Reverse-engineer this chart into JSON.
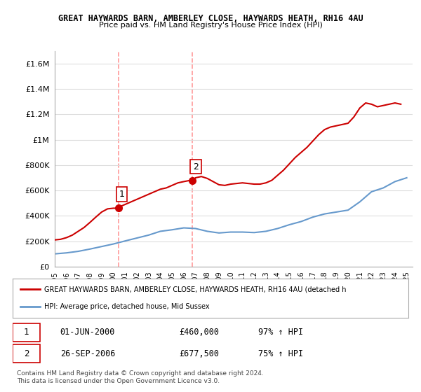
{
  "title1": "GREAT HAYWARDS BARN, AMBERLEY CLOSE, HAYWARDS HEATH, RH16 4AU",
  "title2": "Price paid vs. HM Land Registry's House Price Index (HPI)",
  "sale1_date": "01-JUN-2000",
  "sale1_price": 460000,
  "sale1_label": "1",
  "sale1_year": 2000.42,
  "sale2_date": "26-SEP-2006",
  "sale2_price": 677500,
  "sale2_label": "2",
  "sale2_year": 2006.73,
  "legend_red": "GREAT HAYWARDS BARN, AMBERLEY CLOSE, HAYWARDS HEATH, RH16 4AU (detached h",
  "legend_blue": "HPI: Average price, detached house, Mid Sussex",
  "table_row1": [
    "1",
    "01-JUN-2000",
    "£460,000",
    "97% ↑ HPI"
  ],
  "table_row2": [
    "2",
    "26-SEP-2006",
    "£677,500",
    "75% ↑ HPI"
  ],
  "footnote1": "Contains HM Land Registry data © Crown copyright and database right 2024.",
  "footnote2": "This data is licensed under the Open Government Licence v3.0.",
  "red_color": "#cc0000",
  "blue_color": "#6699cc",
  "vline_color": "#ff9999",
  "ylim": [
    0,
    1700000
  ],
  "xlim_left": 1995.0,
  "xlim_right": 2025.5,
  "hpi_years": [
    1995,
    1996,
    1997,
    1998,
    1999,
    2000,
    2001,
    2002,
    2003,
    2004,
    2005,
    2006,
    2007,
    2008,
    2009,
    2010,
    2011,
    2012,
    2013,
    2014,
    2015,
    2016,
    2017,
    2018,
    2019,
    2020,
    2021,
    2022,
    2023,
    2024,
    2025
  ],
  "hpi_values": [
    100000,
    108000,
    120000,
    138000,
    158000,
    178000,
    202000,
    225000,
    248000,
    278000,
    290000,
    305000,
    300000,
    278000,
    265000,
    272000,
    272000,
    268000,
    278000,
    300000,
    330000,
    355000,
    390000,
    415000,
    430000,
    445000,
    510000,
    590000,
    620000,
    670000,
    700000
  ],
  "red_years": [
    1995,
    1995.5,
    1996,
    1996.5,
    1997,
    1997.5,
    1998,
    1998.5,
    1999,
    1999.5,
    2000,
    2000.42,
    2000.5,
    2001,
    2001.5,
    2002,
    2002.5,
    2003,
    2003.5,
    2004,
    2004.5,
    2005,
    2005.5,
    2006,
    2006.42,
    2006.73,
    2007,
    2007.5,
    2008,
    2008.5,
    2009,
    2009.5,
    2010,
    2010.5,
    2011,
    2011.5,
    2012,
    2012.5,
    2013,
    2013.5,
    2014,
    2014.5,
    2015,
    2015.5,
    2016,
    2016.5,
    2017,
    2017.5,
    2018,
    2018.5,
    2019,
    2019.5,
    2020,
    2020.5,
    2021,
    2021.5,
    2022,
    2022.5,
    2023,
    2023.5,
    2024,
    2024.5
  ],
  "red_values": [
    210000,
    215000,
    228000,
    248000,
    278000,
    308000,
    348000,
    390000,
    430000,
    455000,
    460000,
    460000,
    470000,
    490000,
    510000,
    530000,
    550000,
    570000,
    590000,
    610000,
    620000,
    640000,
    660000,
    670000,
    677500,
    677500,
    700000,
    710000,
    695000,
    670000,
    645000,
    640000,
    650000,
    655000,
    660000,
    655000,
    650000,
    650000,
    660000,
    680000,
    720000,
    760000,
    810000,
    860000,
    900000,
    940000,
    990000,
    1040000,
    1080000,
    1100000,
    1110000,
    1120000,
    1130000,
    1180000,
    1250000,
    1290000,
    1280000,
    1260000,
    1270000,
    1280000,
    1290000,
    1280000
  ],
  "background_color": "#ffffff",
  "grid_color": "#dddddd"
}
